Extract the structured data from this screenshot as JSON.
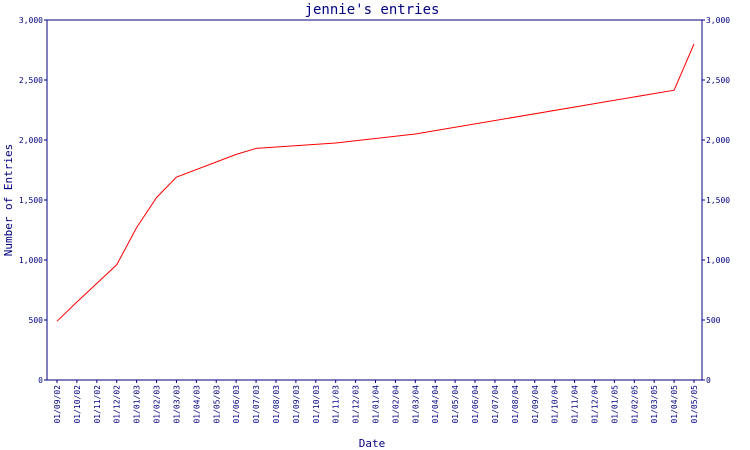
{
  "chart_data": {
    "type": "line",
    "title": "jennie's entries",
    "xlabel": "Date",
    "ylabel": "Number of Entries",
    "ylim": [
      0,
      3000
    ],
    "y_ticks": [
      0,
      500,
      1000,
      1500,
      2000,
      2500,
      3000
    ],
    "y_tick_labels": [
      "0",
      "500",
      "1,000",
      "1,500",
      "2,000",
      "2,500",
      "3,000"
    ],
    "x_tick_labels": [
      "01/09/02",
      "01/10/02",
      "01/11/02",
      "01/12/02",
      "01/01/03",
      "01/02/03",
      "01/03/03",
      "01/04/03",
      "01/05/03",
      "01/06/03",
      "01/07/03",
      "01/08/03",
      "01/09/03",
      "01/10/03",
      "01/11/03",
      "01/12/03",
      "01/01/04",
      "01/02/04",
      "01/03/04",
      "01/04/04",
      "01/05/04",
      "01/06/04",
      "01/07/04",
      "01/08/04",
      "01/09/04",
      "01/10/04",
      "01/11/04",
      "01/12/04",
      "01/01/05",
      "01/02/05",
      "01/03/05",
      "01/04/05",
      "01/05/05"
    ],
    "grid": false,
    "line_color": "#ff0000",
    "axis_color": "#000080",
    "series": [
      {
        "x": [
          "01/09/02",
          "01/10/02",
          "01/12/02",
          "01/01/03",
          "01/02/03",
          "01/03/03",
          "01/06/03",
          "01/07/03",
          "01/11/03",
          "01/03/04",
          "01/04/05",
          "01/05/05"
        ],
        "values": [
          490,
          650,
          960,
          1270,
          1520,
          1690,
          1880,
          1930,
          1975,
          2050,
          2415,
          2800
        ]
      }
    ]
  }
}
